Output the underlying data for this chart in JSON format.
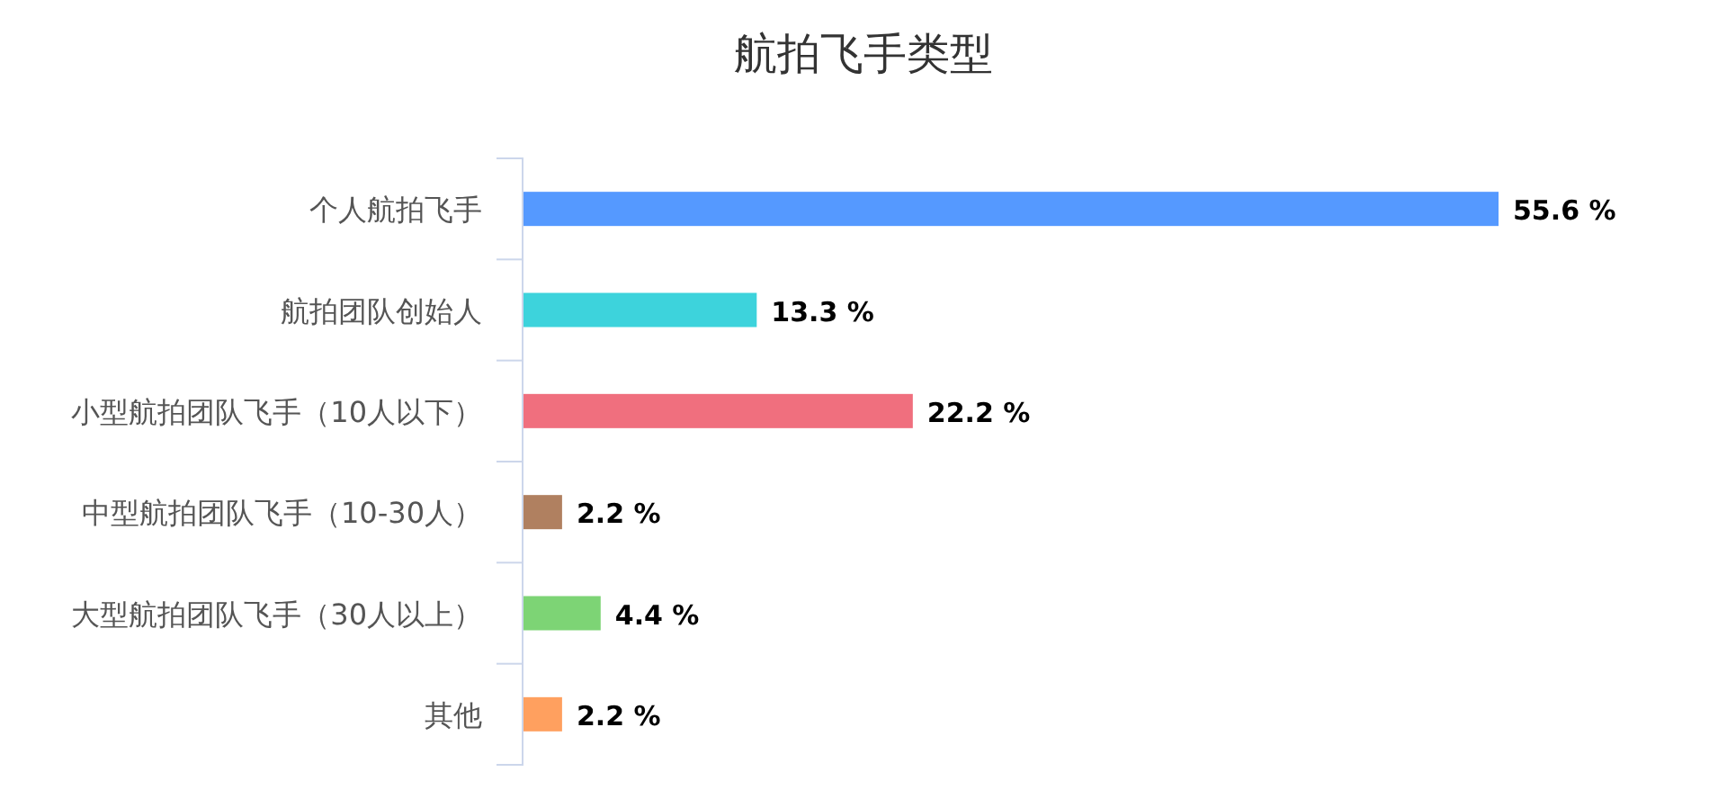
{
  "chart_data": {
    "type": "bar",
    "title": "航拍飞手类型",
    "orientation": "horizontal",
    "categories": [
      "个人航拍飞手",
      "航拍团队创始人",
      "小型航拍团队飞手（10人以下）",
      "中型航拍团队飞手（10-30人）",
      "大型航拍团队飞手（30人以上）",
      "其他"
    ],
    "values": [
      55.6,
      13.3,
      22.2,
      2.2,
      4.4,
      2.2
    ],
    "colors": [
      "#5599ff",
      "#3dd3dc",
      "#f06f7e",
      "#b08060",
      "#7dd475",
      "#ffa05f"
    ],
    "value_labels": [
      "55.6 %",
      "13.3 %",
      "22.2 %",
      "2.2 %",
      "4.4 %",
      "2.2 %"
    ]
  }
}
